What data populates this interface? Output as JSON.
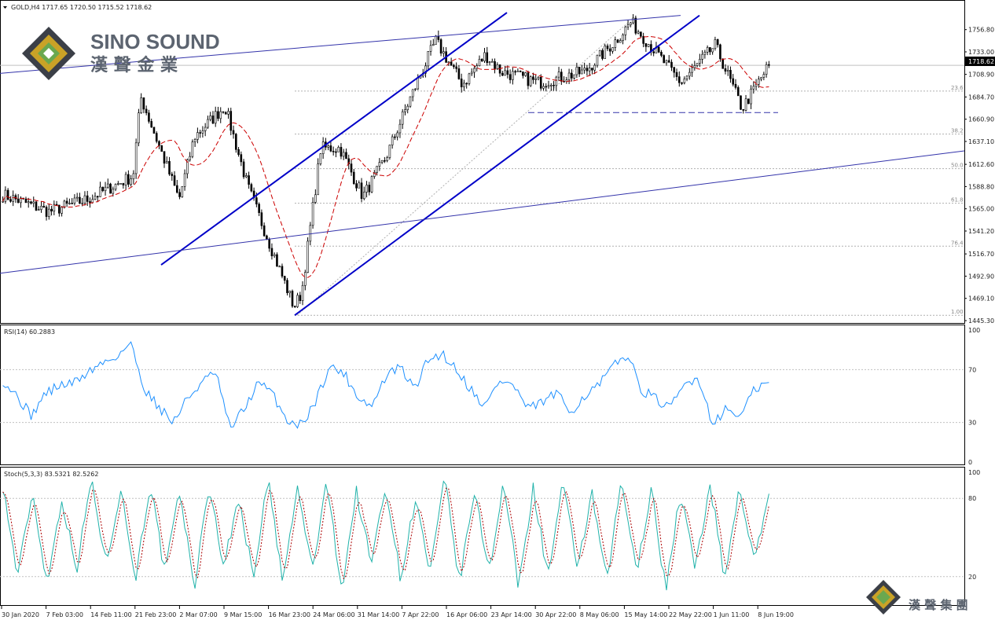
{
  "header": {
    "symbol_text": "GOLD,H4  1717.65 1720.50 1715.52 1718.62",
    "rsi_text": "RSI(14) 60.2883",
    "stoch_text": "Stoch(5,3,3) 83.5321 82.5262"
  },
  "logo": {
    "brand_en": "SINO SOUND",
    "brand_cn": "漢 聲 金 業",
    "footer_cn": "漢 聲 集 團"
  },
  "price_axis": {
    "ticks": [
      "1756.80",
      "1733.00",
      "1708.90",
      "1684.70",
      "1660.90",
      "1637.10",
      "1612.60",
      "1588.80",
      "1565.00",
      "1541.20",
      "1516.70",
      "1492.90",
      "1469.10",
      "1445.30"
    ],
    "current_price": "1718.62"
  },
  "fib_levels": [
    "23.6",
    "38.2",
    "50.0",
    "61.8",
    "76.4",
    "1.00"
  ],
  "rsi_axis": [
    "100",
    "70",
    "30",
    "0"
  ],
  "stoch_axis": [
    "100",
    "80",
    "20"
  ],
  "time_axis": [
    "30 Jan 2020",
    "7 Feb 03:00",
    "14 Feb 11:00",
    "21 Feb 23:00",
    "2 Mar 07:00",
    "9 Mar 15:00",
    "16 Mar 23:00",
    "24 Mar 06:00",
    "31 Mar 14:00",
    "7 Apr 22:00",
    "16 Apr 06:00",
    "23 Apr 14:00",
    "30 Apr 22:00",
    "8 May 06:00",
    "15 May 14:00",
    "22 May 22:00",
    "1 Jun 11:00",
    "8 Jun 19:00"
  ],
  "colors": {
    "candle": "#000000",
    "ma": "#cc0000",
    "channel": "#0000c8",
    "trendline": "#3333aa",
    "rsi": "#1e90ff",
    "stoch_main": "#20b2aa",
    "stoch_signal": "#aa0000",
    "grid": "#c0c0c0"
  },
  "chart_data": {
    "type": "candlestick",
    "symbol": "GOLD",
    "timeframe": "H4",
    "ohlc_last": {
      "open": 1717.65,
      "high": 1720.5,
      "low": 1715.52,
      "close": 1718.62
    },
    "ylim": [
      1445.3,
      1770.0
    ],
    "close_path": {
      "x": [
        "30 Jan 2020",
        "7 Feb 03:00",
        "14 Feb 11:00",
        "21 Feb 23:00",
        "24 Feb",
        "2 Mar 07:00",
        "5 Mar",
        "9 Mar 15:00",
        "12 Mar",
        "16 Mar 23:00",
        "20 Mar",
        "24 Mar 06:00",
        "27 Mar",
        "31 Mar 14:00",
        "3 Apr",
        "7 Apr 22:00",
        "14 Apr",
        "16 Apr 06:00",
        "21 Apr",
        "23 Apr 14:00",
        "30 Apr 22:00",
        "8 May 06:00",
        "15 May 14:00",
        "18 May",
        "22 May 22:00",
        "1 Jun 11:00",
        "5 Jun",
        "8 Jun 19:00"
      ],
      "y": [
        1580,
        1562,
        1575,
        1600,
        1685,
        1575,
        1642,
        1675,
        1588,
        1460,
        1475,
        1630,
        1630,
        1578,
        1620,
        1680,
        1745,
        1698,
        1730,
        1712,
        1700,
        1712,
        1745,
        1765,
        1700,
        1740,
        1672,
        1718.62
      ]
    },
    "fibonacci": {
      "levels": [
        23.6,
        38.2,
        50.0,
        61.8,
        76.4,
        100
      ],
      "prices": [
        1691.0,
        1645.0,
        1608.0,
        1571.0,
        1525.0,
        1451.0
      ]
    },
    "horizontal_support": 1668,
    "rsi": {
      "name": "RSI(14)",
      "last": 60.2883,
      "ylim": [
        0,
        100
      ],
      "levels": [
        70,
        30
      ],
      "values": [
        62,
        50,
        35,
        52,
        58,
        60,
        68,
        75,
        80,
        90,
        55,
        42,
        30,
        48,
        60,
        68,
        25,
        40,
        60,
        52,
        32,
        28,
        45,
        72,
        68,
        50,
        42,
        65,
        72,
        55,
        78,
        82,
        70,
        55,
        42,
        62,
        58,
        40,
        45,
        52,
        38,
        50,
        58,
        72,
        82,
        55,
        48,
        40,
        58,
        65,
        30,
        40,
        35,
        55,
        60.29
      ]
    },
    "stochastic": {
      "name": "Stoch(5,3,3)",
      "main_last": 83.5321,
      "signal_last": 82.5262,
      "ylim": [
        0,
        100
      ],
      "levels": [
        80,
        20
      ],
      "values": [
        90,
        20,
        85,
        15,
        80,
        25,
        95,
        30,
        88,
        18,
        92,
        22,
        85,
        12,
        90,
        28,
        80,
        20,
        95,
        15,
        88,
        25,
        92,
        10,
        85,
        30,
        90,
        18,
        80,
        22,
        95,
        15,
        85,
        25,
        92,
        12,
        88,
        20,
        90,
        28,
        82,
        15,
        95,
        22,
        88,
        10,
        85,
        25,
        92,
        18,
        90,
        30,
        83.53
      ]
    }
  }
}
